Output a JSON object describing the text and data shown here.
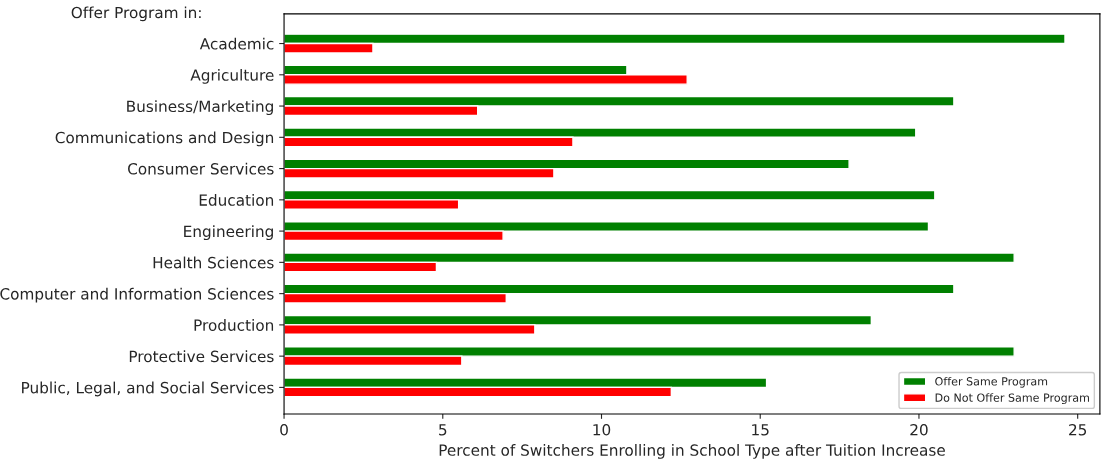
{
  "chart_data": {
    "type": "bar",
    "orientation": "horizontal",
    "xlabel": "Percent of Switchers Enrolling in School Type after Tuition Increase",
    "ylabel": "Offer Program in:",
    "categories": [
      "Academic",
      "Agriculture",
      "Business/Marketing",
      "Communications and Design",
      "Consumer Services",
      "Education",
      "Engineering",
      "Health Sciences",
      "Computer and Information Sciences",
      "Production",
      "Protective Services",
      "Public, Legal, and Social Services"
    ],
    "series": [
      {
        "name": "Offer Same Program",
        "color": "#008000",
        "values": [
          24.6,
          10.8,
          21.1,
          19.9,
          17.8,
          20.5,
          20.3,
          23.0,
          21.1,
          18.5,
          23.0,
          15.2
        ]
      },
      {
        "name": "Do Not Offer Same Program",
        "color": "#ff0000",
        "values": [
          2.8,
          12.7,
          6.1,
          9.1,
          8.5,
          5.5,
          6.9,
          4.8,
          7.0,
          7.9,
          5.6,
          12.2
        ]
      }
    ],
    "xlim": [
      0,
      25.7
    ],
    "xticks": [
      0,
      5,
      10,
      15,
      20,
      25
    ],
    "grid": false,
    "legend": "bottom right"
  }
}
